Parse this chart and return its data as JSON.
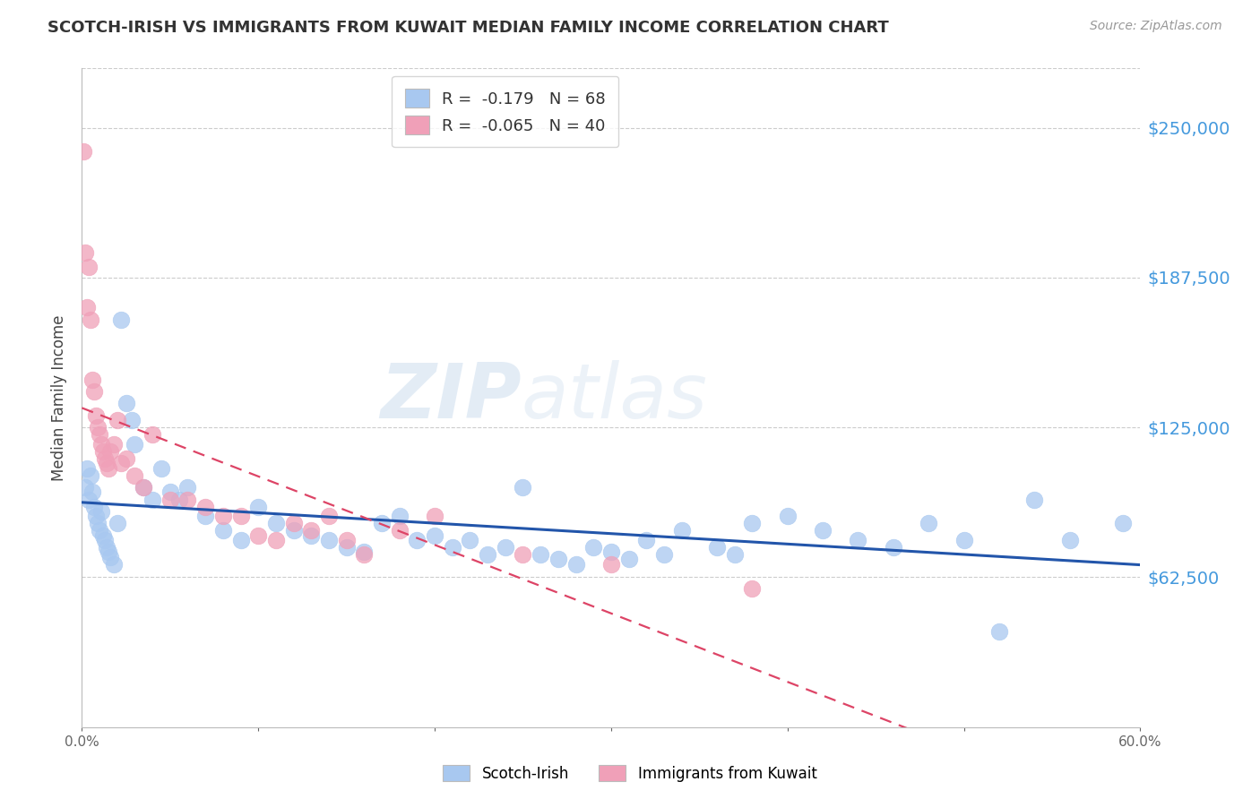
{
  "title": "SCOTCH-IRISH VS IMMIGRANTS FROM KUWAIT MEDIAN FAMILY INCOME CORRELATION CHART",
  "source": "Source: ZipAtlas.com",
  "ylabel": "Median Family Income",
  "xlim": [
    0.0,
    0.6
  ],
  "ylim": [
    0,
    275000
  ],
  "yticks": [
    62500,
    125000,
    187500,
    250000
  ],
  "ytick_labels": [
    "$62,500",
    "$125,000",
    "$187,500",
    "$250,000"
  ],
  "xtick_positions": [
    0.0,
    0.1,
    0.2,
    0.3,
    0.4,
    0.5,
    0.6
  ],
  "xtick_labels": [
    "0.0%",
    "",
    "",
    "",
    "",
    "",
    "60.0%"
  ],
  "legend_labels": [
    "Scotch-Irish",
    "Immigrants from Kuwait"
  ],
  "r_scotch_irish": -0.179,
  "n_scotch_irish": 68,
  "r_kuwait": -0.065,
  "n_kuwait": 40,
  "color_scotch_irish": "#a8c8f0",
  "color_kuwait": "#f0a0b8",
  "trendline_scotch_color": "#2255aa",
  "trendline_kuwait_color": "#dd4466",
  "watermark_zip": "ZIP",
  "watermark_atlas": "atlas",
  "scotch_irish_x": [
    0.002,
    0.003,
    0.004,
    0.005,
    0.006,
    0.007,
    0.008,
    0.009,
    0.01,
    0.011,
    0.012,
    0.013,
    0.014,
    0.015,
    0.016,
    0.018,
    0.02,
    0.022,
    0.025,
    0.028,
    0.03,
    0.035,
    0.04,
    0.045,
    0.05,
    0.055,
    0.06,
    0.07,
    0.08,
    0.09,
    0.1,
    0.11,
    0.12,
    0.13,
    0.14,
    0.15,
    0.16,
    0.17,
    0.18,
    0.19,
    0.2,
    0.21,
    0.22,
    0.23,
    0.24,
    0.25,
    0.26,
    0.27,
    0.28,
    0.29,
    0.3,
    0.31,
    0.32,
    0.33,
    0.34,
    0.36,
    0.37,
    0.38,
    0.4,
    0.42,
    0.44,
    0.46,
    0.48,
    0.5,
    0.52,
    0.54,
    0.56,
    0.59
  ],
  "scotch_irish_y": [
    100000,
    108000,
    95000,
    105000,
    98000,
    92000,
    88000,
    85000,
    82000,
    90000,
    80000,
    78000,
    75000,
    73000,
    71000,
    68000,
    85000,
    170000,
    135000,
    128000,
    118000,
    100000,
    95000,
    108000,
    98000,
    95000,
    100000,
    88000,
    82000,
    78000,
    92000,
    85000,
    82000,
    80000,
    78000,
    75000,
    73000,
    85000,
    88000,
    78000,
    80000,
    75000,
    78000,
    72000,
    75000,
    100000,
    72000,
    70000,
    68000,
    75000,
    73000,
    70000,
    78000,
    72000,
    82000,
    75000,
    72000,
    85000,
    88000,
    82000,
    78000,
    75000,
    85000,
    78000,
    40000,
    95000,
    78000,
    85000
  ],
  "kuwait_x": [
    0.001,
    0.002,
    0.003,
    0.004,
    0.005,
    0.006,
    0.007,
    0.008,
    0.009,
    0.01,
    0.011,
    0.012,
    0.013,
    0.014,
    0.015,
    0.016,
    0.018,
    0.02,
    0.022,
    0.025,
    0.03,
    0.035,
    0.04,
    0.05,
    0.06,
    0.07,
    0.08,
    0.09,
    0.1,
    0.11,
    0.12,
    0.13,
    0.14,
    0.15,
    0.16,
    0.18,
    0.2,
    0.25,
    0.3,
    0.38
  ],
  "kuwait_y": [
    240000,
    198000,
    175000,
    192000,
    170000,
    145000,
    140000,
    130000,
    125000,
    122000,
    118000,
    115000,
    112000,
    110000,
    108000,
    115000,
    118000,
    128000,
    110000,
    112000,
    105000,
    100000,
    122000,
    95000,
    95000,
    92000,
    88000,
    88000,
    80000,
    78000,
    85000,
    82000,
    88000,
    78000,
    72000,
    82000,
    88000,
    72000,
    68000,
    58000
  ]
}
